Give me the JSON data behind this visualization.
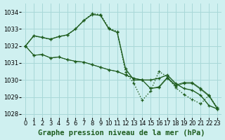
{
  "background_color": "#cff0f0",
  "grid_color": "#a8d8d8",
  "line_color": "#1e5c1e",
  "xlabel": "Graphe pression niveau de la mer (hPa)",
  "xlabel_fontsize": 7.5,
  "tick_fontsize": 6,
  "ylim": [
    1027.8,
    1034.5
  ],
  "xlim": [
    -0.5,
    23.5
  ],
  "yticks": [
    1028,
    1029,
    1030,
    1031,
    1032,
    1033,
    1034
  ],
  "xticks": [
    0,
    1,
    2,
    3,
    4,
    5,
    6,
    7,
    8,
    9,
    10,
    11,
    12,
    13,
    14,
    15,
    16,
    17,
    18,
    19,
    20,
    21,
    22,
    23
  ],
  "series1": [
    1032.0,
    1032.6,
    1032.5,
    1032.4,
    1032.55,
    1032.65,
    1033.0,
    1033.5,
    1033.85,
    1033.8,
    1033.0,
    1032.8,
    1030.65,
    1030.0,
    1030.0,
    1030.0,
    1030.1,
    1030.3,
    1029.8,
    1029.5,
    1029.4,
    1029.1,
    1028.5,
    1028.3
  ],
  "series2": [
    1032.0,
    1032.6,
    1032.5,
    1032.4,
    1032.55,
    1032.65,
    1033.0,
    1033.5,
    1033.9,
    1033.85,
    1033.05,
    1032.85,
    1030.45,
    1029.8,
    1028.8,
    1029.35,
    1030.5,
    1030.2,
    1029.55,
    1029.15,
    1028.85,
    1028.6,
    1029.1,
    1028.35
  ],
  "series3": [
    1032.0,
    1031.45,
    1031.5,
    1031.3,
    1031.35,
    1031.2,
    1031.1,
    1031.05,
    1030.9,
    1030.75,
    1030.6,
    1030.5,
    1030.3,
    1030.1,
    1030.0,
    1029.5,
    1029.6,
    1030.15,
    1029.7,
    1029.85,
    1029.85,
    1029.5,
    1029.1,
    1028.35
  ],
  "series4": [
    1032.0,
    1031.45,
    1031.5,
    1031.3,
    1031.35,
    1031.2,
    1031.1,
    1031.05,
    1030.9,
    1030.75,
    1030.6,
    1030.5,
    1030.3,
    1030.1,
    1030.0,
    1029.5,
    1029.55,
    1030.1,
    1029.65,
    1029.8,
    1029.8,
    1029.45,
    1029.05,
    1028.3
  ]
}
